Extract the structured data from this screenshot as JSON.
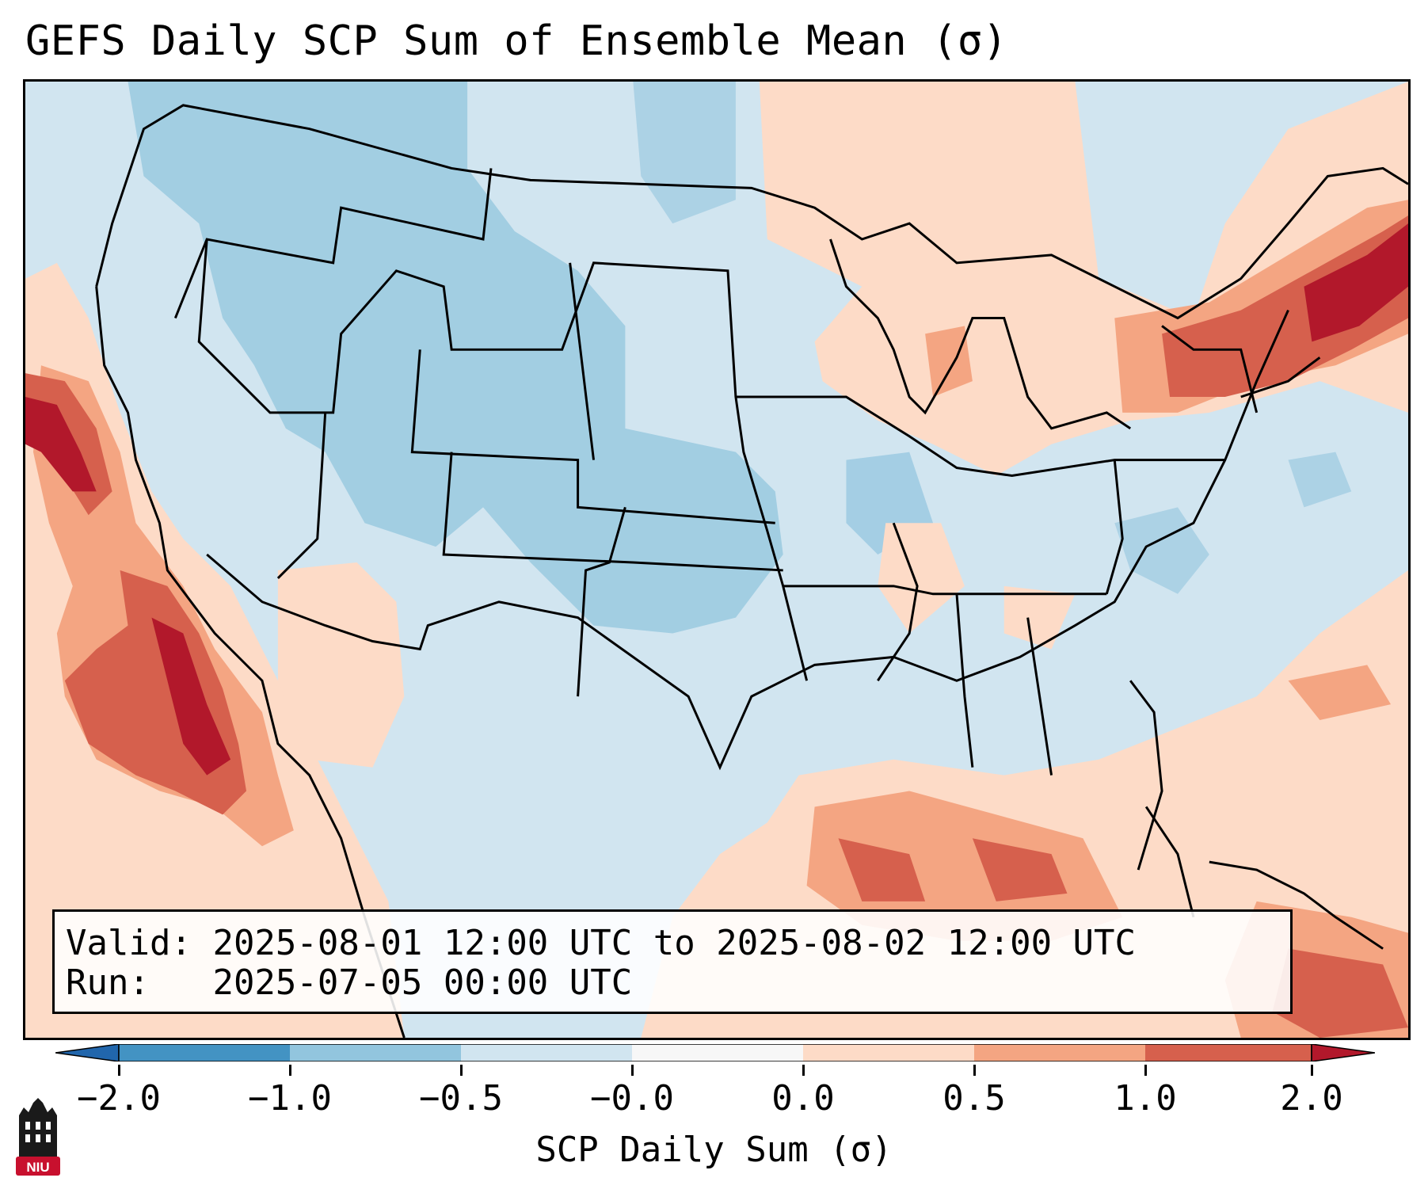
{
  "title": "GEFS Daily SCP Sum of Ensemble Mean (σ)",
  "info": {
    "valid_label": "Valid:",
    "valid_value": "2025-08-01 12:00 UTC to 2025-08-02 12:00 UTC",
    "run_label": "Run:",
    "run_value": "2025-07-05 00:00 UTC"
  },
  "colorbar": {
    "label": "SCP Daily Sum (σ)",
    "ticks": [
      "−2.0",
      "−1.0",
      "−0.5",
      "−0.0",
      "0.0",
      "0.5",
      "1.0",
      "2.0"
    ],
    "colors": [
      "#2166ac",
      "#4393c3",
      "#92c5de",
      "#d1e5f0",
      "#f7f7f7",
      "#fddbc7",
      "#f4a582",
      "#d6604d",
      "#b2182b"
    ]
  },
  "logo_text": "NIU",
  "logo_color": "#c8102e",
  "map": {
    "background_color": "#d1e5f0",
    "region": "Contiguous United States, Mexico and Caribbean",
    "strong_positive_areas": [
      "Pacific coast / Baja California",
      "Northern New England",
      "Gulf of Mexico",
      "Caribbean"
    ],
    "negative_areas": [
      "Northern Plains",
      "Northern Rockies",
      "Central Plains"
    ]
  }
}
